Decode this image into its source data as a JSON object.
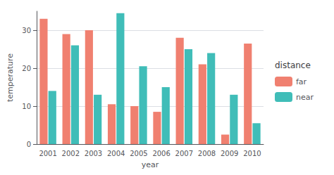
{
  "chart_data": {
    "type": "bar",
    "xlabel": "year",
    "ylabel": "temperature",
    "categories": [
      "2001",
      "2002",
      "2003",
      "2004",
      "2005",
      "2006",
      "2007",
      "2008",
      "2009",
      "2010"
    ],
    "series": [
      {
        "name": "far",
        "color": "#F08070",
        "values": [
          33,
          29,
          30,
          10.5,
          10,
          8.5,
          28,
          21,
          2.5,
          26.5
        ]
      },
      {
        "name": "near",
        "color": "#40BDB8",
        "values": [
          14,
          26,
          13,
          34.5,
          20.5,
          15,
          25,
          24,
          13,
          5.5
        ]
      }
    ],
    "legend_title": "distance",
    "legend": "right",
    "ylim": [
      0,
      35
    ],
    "yticks": [
      0,
      10,
      20,
      30
    ],
    "grid": true
  }
}
